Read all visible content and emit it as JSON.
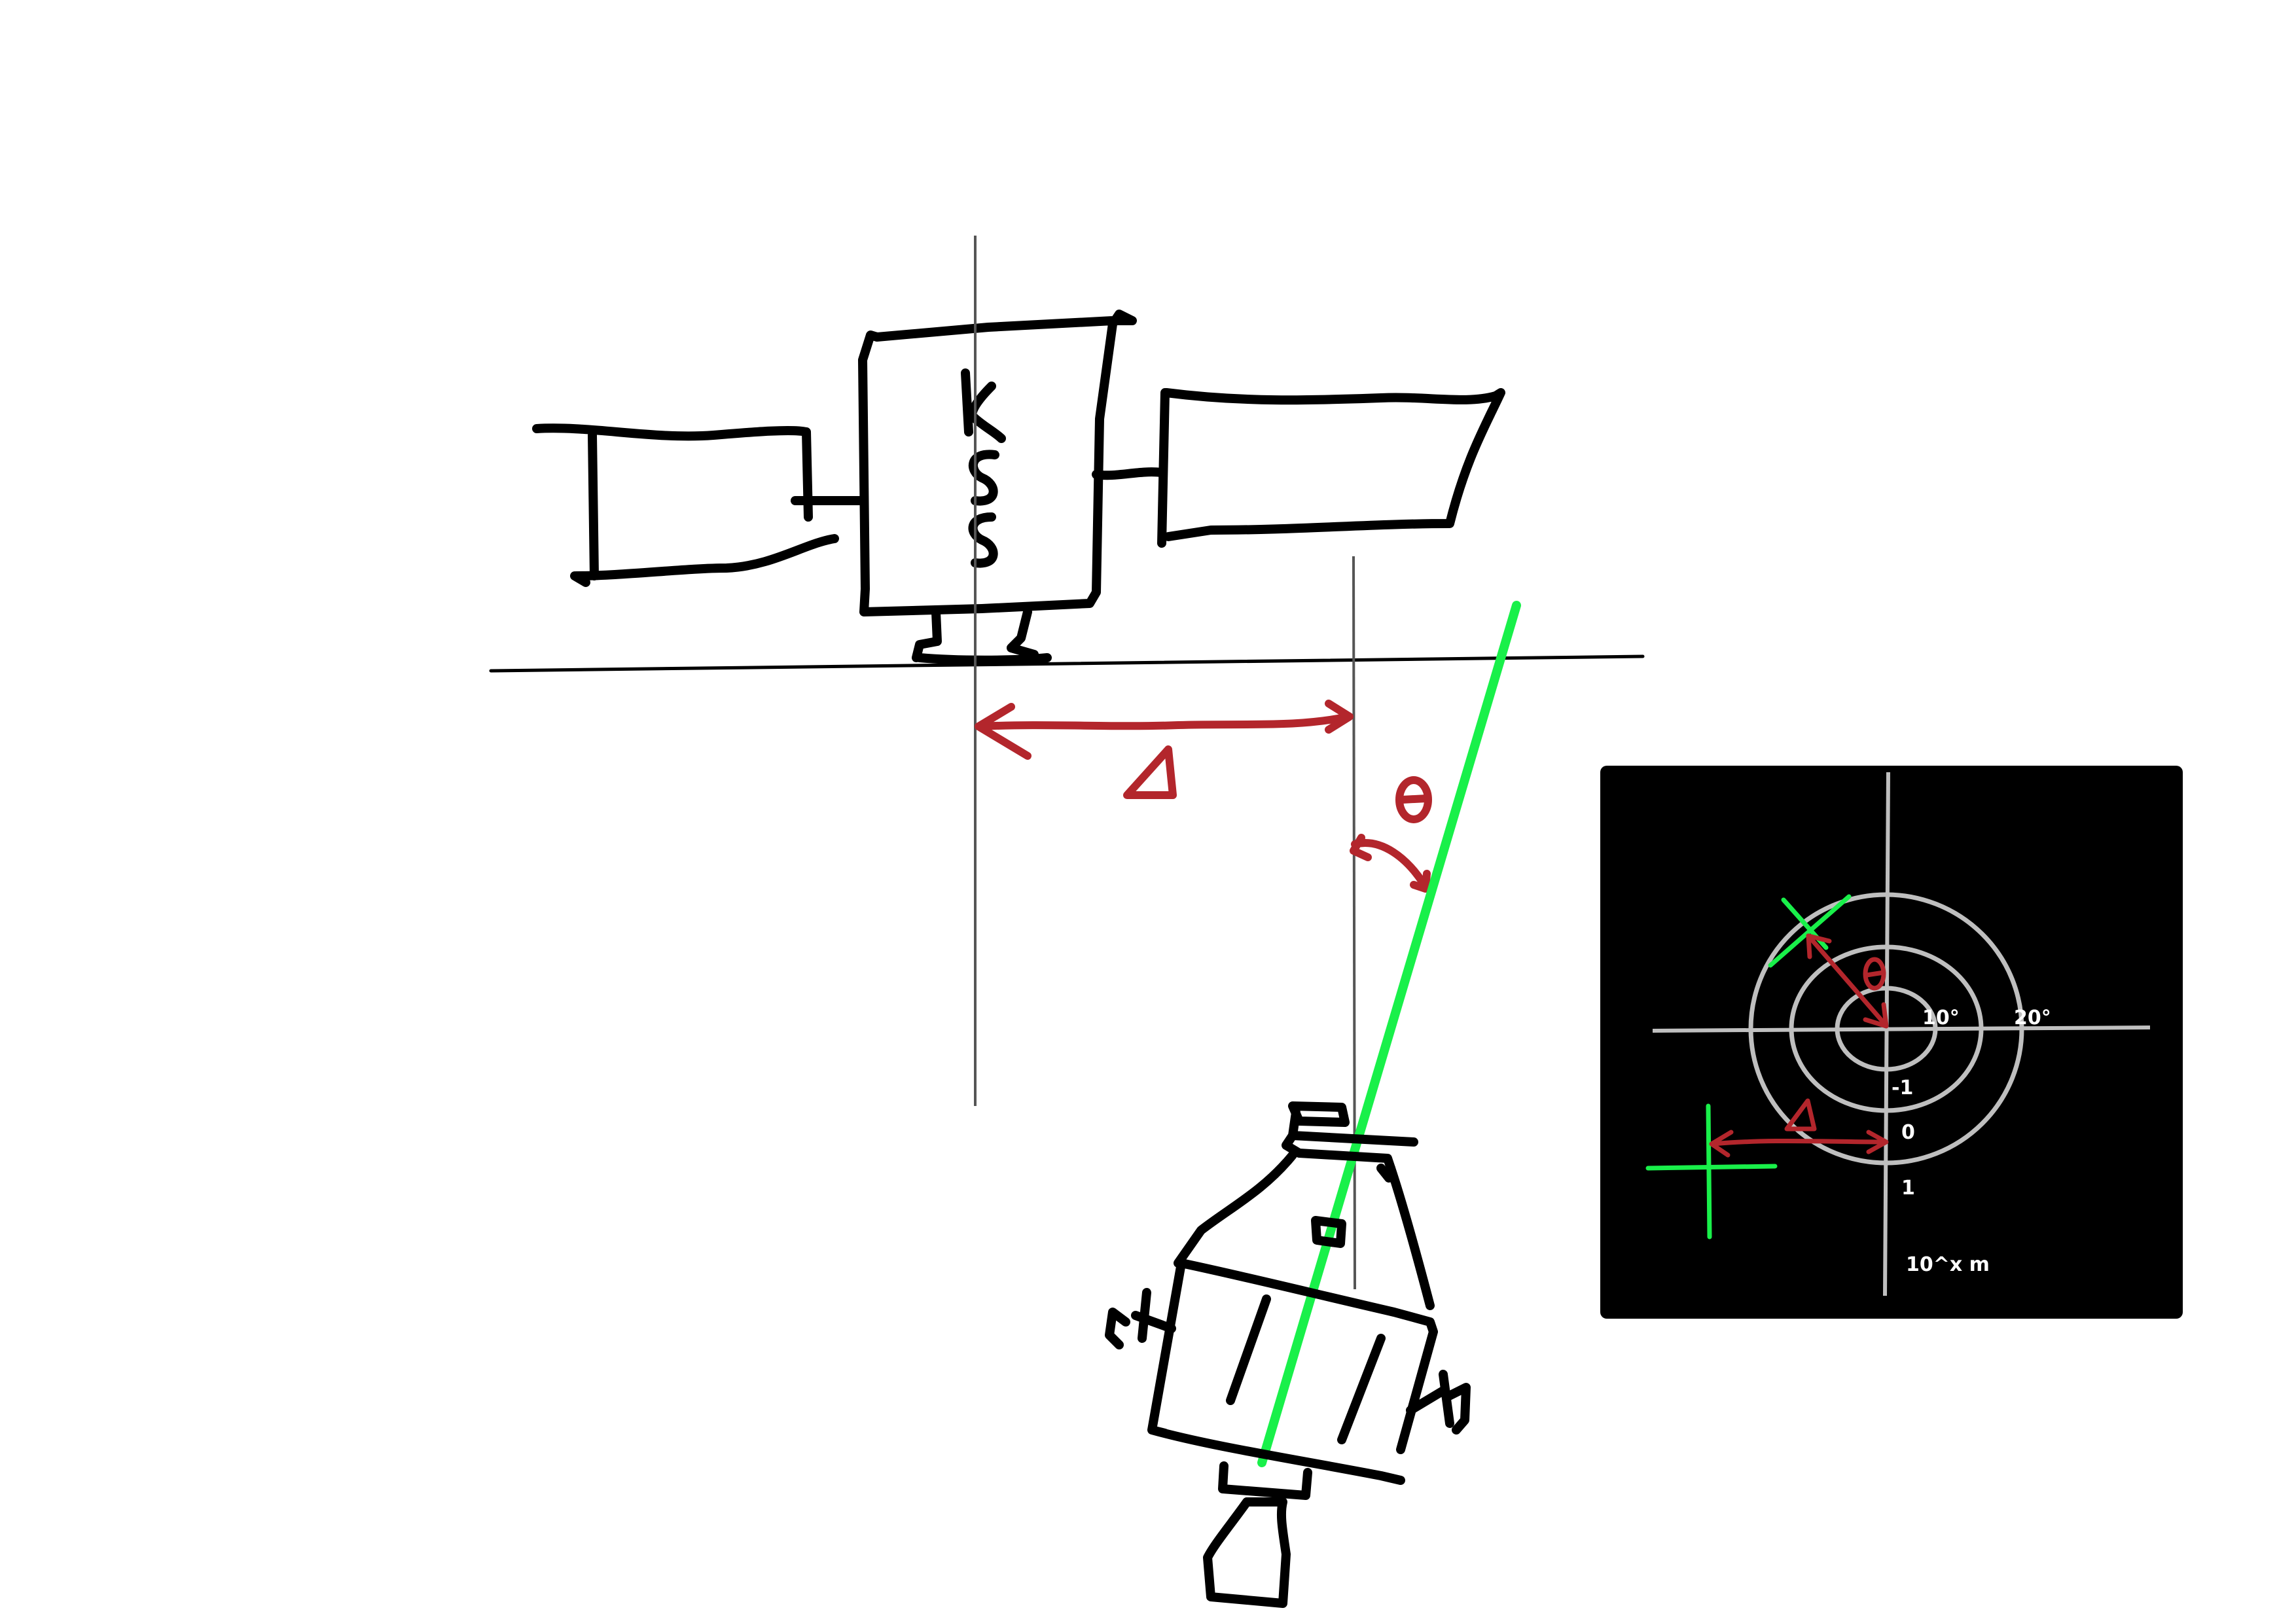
{
  "station": {
    "label_letters": [
      "K",
      "S",
      "S"
    ]
  },
  "symbols": {
    "offset": "Δ",
    "angle": "θ"
  },
  "inset": {
    "angle_ticks": [
      "10°",
      "20°"
    ],
    "distance_ticks": [
      "-1",
      "0",
      "1"
    ],
    "distance_unit": "10^x m"
  },
  "colors": {
    "ink": "#000000",
    "guide": "#555555",
    "measure": "#b3262c",
    "approach_axis": "#19f04a",
    "inset_bg": "#000000",
    "inset_grid": "#bfbfbf"
  }
}
